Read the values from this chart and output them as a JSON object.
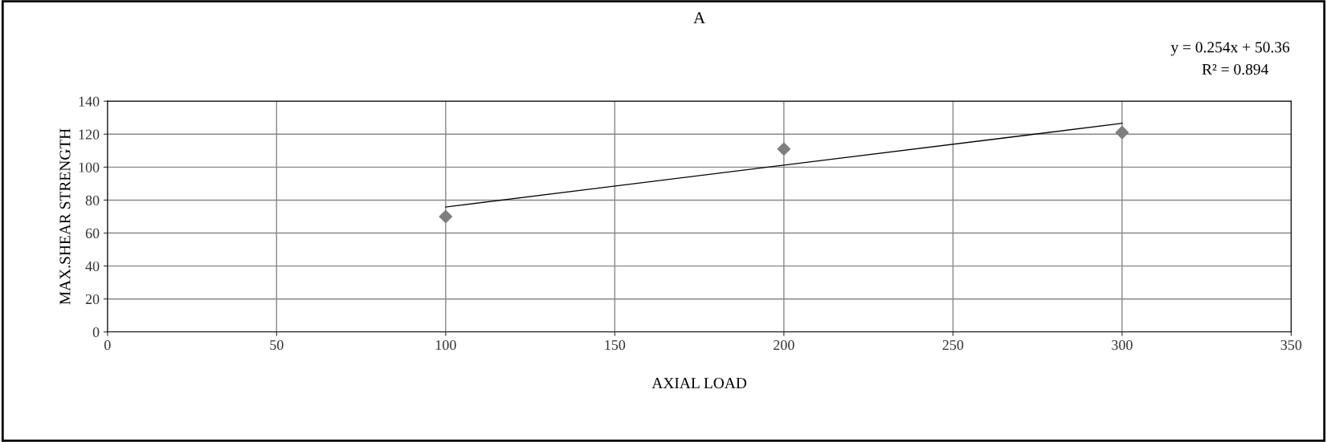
{
  "chart_data": {
    "type": "scatter",
    "title": "A",
    "xlabel": "AXIAL LOAD",
    "ylabel": "MAX.SHEAR STRENGTH",
    "annotations": [
      "y = 0.254x + 50.36",
      "R² = 0.894"
    ],
    "series": [
      {
        "color": "#7f7f7f",
        "marker": "diamond",
        "x": [
          100,
          200,
          300
        ],
        "values": [
          70,
          111,
          121
        ]
      },
      {
        "type": "line",
        "color": "#000000",
        "marker": "none",
        "line_style": "solid",
        "x": [
          100,
          300
        ],
        "values": [
          75.8,
          126.6
        ]
      }
    ],
    "xlim": [
      0,
      350
    ],
    "xticks": [
      0,
      50,
      100,
      150,
      200,
      250,
      300,
      350
    ],
    "ylim": [
      0,
      140
    ],
    "yticks": [
      0,
      20,
      40,
      60,
      80,
      100,
      120,
      140
    ],
    "grid": true
  }
}
